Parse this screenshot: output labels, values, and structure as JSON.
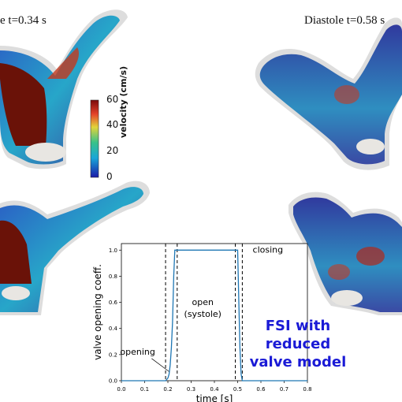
{
  "panels": {
    "top_left_label": "e   t=0.34 s",
    "top_right_label": "Diastole    t=0.58 s"
  },
  "colorbar": {
    "title": "velocity (cm/s)",
    "ticks": [
      "60",
      "40",
      "20",
      "0"
    ],
    "range": [
      0,
      60
    ]
  },
  "chart_data": {
    "type": "line",
    "xlabel": "time [s]",
    "ylabel": "valve opening coeff.",
    "xlim": [
      0.0,
      0.8
    ],
    "ylim": [
      0.0,
      1.05
    ],
    "x_ticks": [
      "0.0",
      "0.1",
      "0.2",
      "0.3",
      "0.4",
      "0.5",
      "0.6",
      "0.7",
      "0.8"
    ],
    "y_ticks": [
      "0.0",
      "0.2",
      "0.4",
      "0.6",
      "0.8",
      "1.0"
    ],
    "series": [
      {
        "x": [
          0.0,
          0.19,
          0.2,
          0.205,
          0.21,
          0.215,
          0.22,
          0.225,
          0.23,
          0.24,
          0.5,
          0.505,
          0.51,
          0.515,
          0.52,
          0.8
        ],
        "y": [
          0.0,
          0.0,
          0.02,
          0.05,
          0.12,
          0.25,
          0.45,
          0.8,
          1.0,
          1.0,
          1.0,
          0.6,
          0.25,
          0.05,
          0.0,
          0.0
        ]
      }
    ],
    "vlines": [
      0.19,
      0.24,
      0.49,
      0.52
    ],
    "annotations": [
      {
        "text": "opening",
        "x": 0.07,
        "y": 0.2
      },
      {
        "text": "open",
        "x": 0.35,
        "y": 0.58
      },
      {
        "text": "(systole)",
        "x": 0.35,
        "y": 0.49
      },
      {
        "text": "closing",
        "x": 0.63,
        "y": 0.98
      }
    ]
  },
  "caption": {
    "line1": "FSI with",
    "line2": "reduced",
    "line3": "valve model"
  },
  "colors": {
    "line": "#1f77b4",
    "caption": "#1a1ad6"
  }
}
